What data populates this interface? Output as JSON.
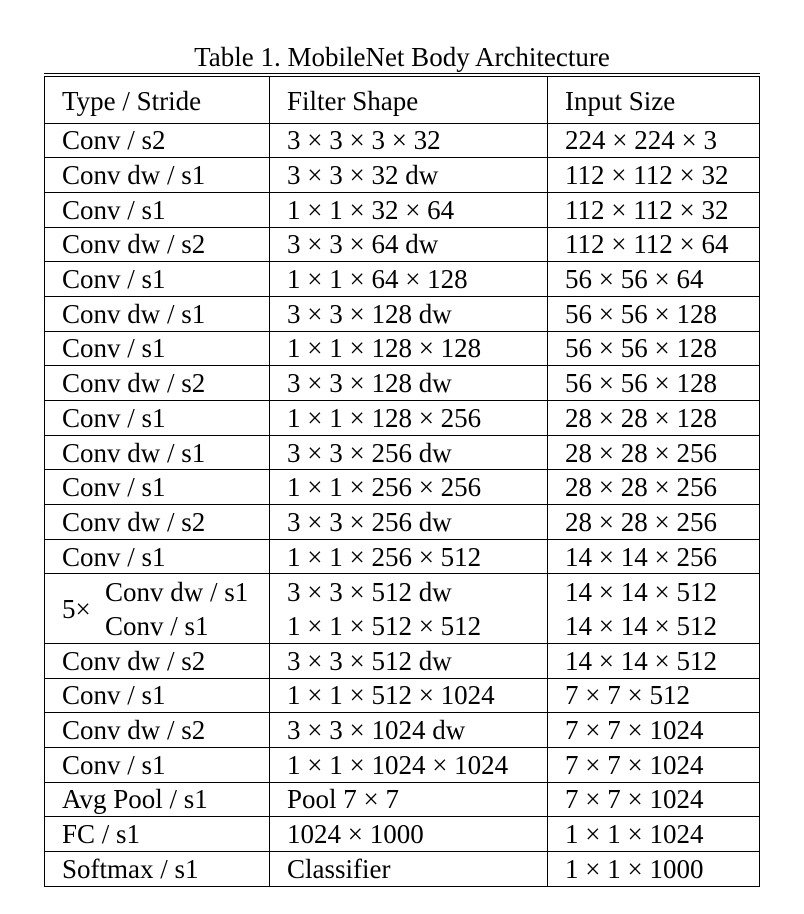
{
  "caption": "Table 1. MobileNet Body Architecture",
  "headers": [
    "Type / Stride",
    "Filter Shape",
    "Input Size"
  ],
  "rows": [
    [
      "Conv / s2",
      "3 × 3 × 3 × 32",
      "224 × 224 × 3"
    ],
    [
      "Conv dw / s1",
      "3 × 3 × 32 dw",
      "112 × 112 × 32"
    ],
    [
      "Conv / s1",
      "1 × 1 × 32 × 64",
      "112 × 112 × 32"
    ],
    [
      "Conv dw / s2",
      "3 × 3 × 64 dw",
      "112 × 112 × 64"
    ],
    [
      "Conv / s1",
      "1 × 1 × 64 × 128",
      "56 × 56 × 64"
    ],
    [
      "Conv dw / s1",
      "3 × 3 × 128 dw",
      "56 × 56 × 128"
    ],
    [
      "Conv / s1",
      "1 × 1 × 128 × 128",
      "56 × 56 × 128"
    ],
    [
      "Conv dw / s2",
      "3 × 3 × 128 dw",
      "56 × 56 × 128"
    ],
    [
      "Conv / s1",
      "1 × 1 × 128 × 256",
      "28 × 28 × 128"
    ],
    [
      "Conv dw / s1",
      "3 × 3 × 256 dw",
      "28 × 28 × 256"
    ],
    [
      "Conv / s1",
      "1 × 1 × 256 × 256",
      "28 × 28 × 256"
    ],
    [
      "Conv dw / s2",
      "3 × 3 × 256 dw",
      "28 × 28 × 256"
    ],
    [
      "Conv / s1",
      "1 × 1 × 256 × 512",
      "14 × 14 × 256"
    ]
  ],
  "repeat_block": {
    "label": "5×",
    "rows": [
      [
        "Conv dw / s1",
        "3 × 3 × 512 dw",
        "14 × 14 × 512"
      ],
      [
        "Conv / s1",
        "1 × 1 × 512 × 512",
        "14 × 14 × 512"
      ]
    ]
  },
  "rows_after": [
    [
      "Conv dw / s2",
      "3 × 3 × 512 dw",
      "14 × 14 × 512"
    ],
    [
      "Conv / s1",
      "1 × 1 × 512 × 1024",
      "7 × 7 × 512"
    ],
    [
      "Conv dw / s2",
      "3 × 3 × 1024 dw",
      "7 × 7 × 1024"
    ],
    [
      "Conv / s1",
      "1 × 1 × 1024 × 1024",
      "7 × 7 × 1024"
    ],
    [
      "Avg Pool / s1",
      "Pool 7 × 7",
      "7 × 7 × 1024"
    ],
    [
      "FC / s1",
      "1024 × 1000",
      "1 × 1 × 1024"
    ],
    [
      "Softmax / s1",
      "Classifier",
      "1 × 1 × 1000"
    ]
  ]
}
